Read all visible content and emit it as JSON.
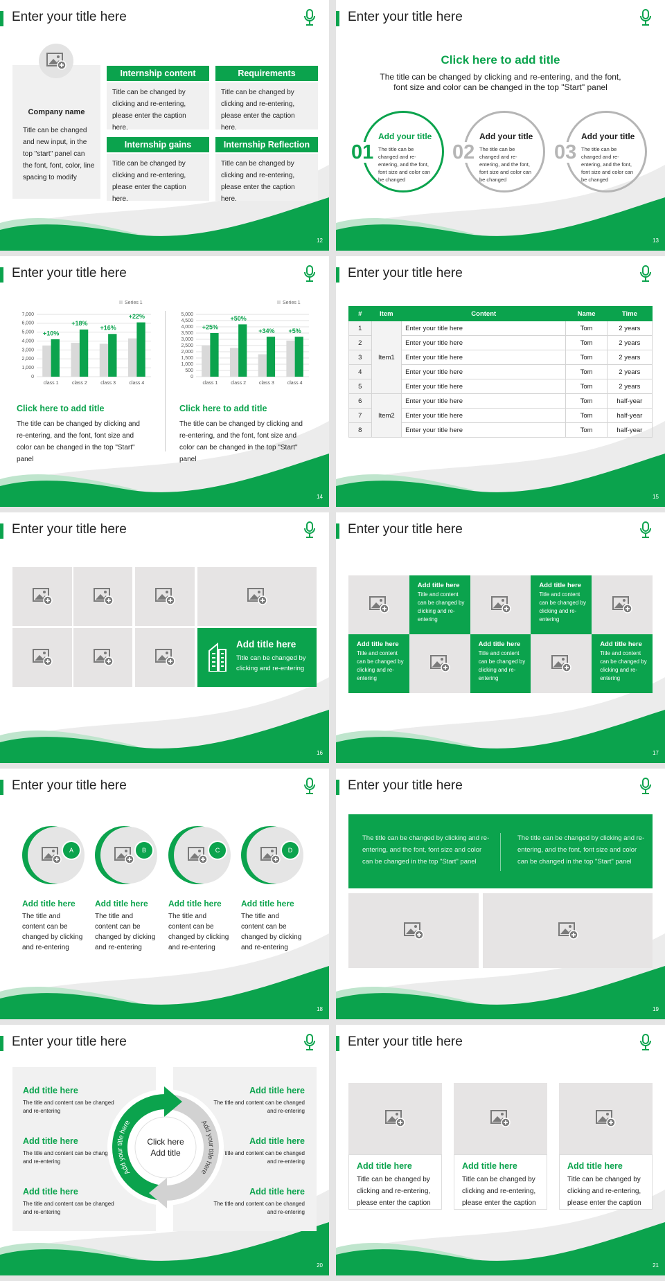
{
  "slides": [
    {
      "title": "Enter your title here",
      "page": 12,
      "company": {
        "name": "Company name",
        "text": "Title can be changed and new input, in the top \"start\" panel can the font, font, color, line spacing to modify"
      },
      "boxes": [
        {
          "heading": "Internship content",
          "text": "Title can be changed by clicking and re-entering, please enter the caption here."
        },
        {
          "heading": "Requirements",
          "text": "Title can be changed by clicking and re-entering, please enter the caption here."
        },
        {
          "heading": "Internship gains",
          "text": "Title can be changed by clicking and re-entering, please enter the caption here."
        },
        {
          "heading": "Internship Reflection",
          "text": "Title can be changed by clicking and re-entering, please enter the caption here."
        }
      ]
    },
    {
      "title": "Enter your title here",
      "page": 13,
      "heading": "Click here to add title",
      "text": "The title can be changed by clicking and re-entering, and the font, font size and color can be changed in the top \"Start\" panel",
      "items": [
        {
          "number": "01",
          "title": "Add your title",
          "text": "The title can be changed and re-entering, and the font, font size and color can be changed"
        },
        {
          "number": "02",
          "title": "Add your title",
          "text": "The title can be changed and re-entering, and the font, font size and color can be changed"
        },
        {
          "number": "03",
          "title": "Add your title",
          "text": "The title can be changed and re-entering, and the font, font size and color can be changed"
        }
      ]
    },
    {
      "title": "Enter your title here",
      "page": 14,
      "captions": [
        {
          "heading": "Click here to add title",
          "text": "The title can be changed by clicking and re-entering, and the font, font size and color can be changed in the top \"Start\" panel"
        },
        {
          "heading": "Click here to add title",
          "text": "The title can be changed by clicking and re-entering, and the font, font size and color can be changed in the top \"Start\" panel"
        }
      ]
    },
    {
      "title": "Enter your title here",
      "page": 15,
      "table": {
        "header": [
          "#",
          "Item",
          "Content",
          "Name",
          "Time"
        ],
        "groups": [
          {
            "item": "Item1",
            "rows": [
              [
                1,
                "Enter your title here",
                "Tom",
                "2 years"
              ],
              [
                2,
                "Enter your title here",
                "Tom",
                "2 years"
              ],
              [
                3,
                "Enter your title here",
                "Tom",
                "2 years"
              ],
              [
                4,
                "Enter your title here",
                "Tom",
                "2 years"
              ],
              [
                5,
                "Enter your title here",
                "Tom",
                "2 years"
              ]
            ]
          },
          {
            "item": "Item2",
            "rows": [
              [
                6,
                "Enter your title here",
                "Tom",
                "half-year"
              ],
              [
                7,
                "Enter your title here",
                "Tom",
                "half-year"
              ],
              [
                8,
                "Enter your title here",
                "Tom",
                "half-year"
              ]
            ]
          }
        ]
      }
    },
    {
      "title": "Enter your title here",
      "page": 16,
      "feature": {
        "title": "Add title here",
        "text": "Title can be changed by clicking and re-entering"
      }
    },
    {
      "title": "Enter your title here",
      "page": 17,
      "cards": [
        {
          "title": "Add title here",
          "text": "Title and content can be changed by clicking and re-entering"
        },
        {
          "title": "Add title here",
          "text": "Title and content can be changed by clicking and re-entering"
        },
        {
          "title": "Add title here",
          "text": "Title and content can be changed by clicking and re-entering"
        },
        {
          "title": "Add title here",
          "text": "Title and content can be changed by clicking and re-entering"
        },
        {
          "title": "Add title here",
          "text": "Title and content can be changed by clicking and re-entering"
        }
      ]
    },
    {
      "title": "Enter your title here",
      "page": 18,
      "items": [
        {
          "letter": "A",
          "title": "Add title here",
          "text": "The title and content can be changed by clicking and re-entering"
        },
        {
          "letter": "B",
          "title": "Add title here",
          "text": "The title and content can be changed by clicking and re-entering"
        },
        {
          "letter": "C",
          "title": "Add title here",
          "text": "The title and content can be changed by clicking and re-entering"
        },
        {
          "letter": "D",
          "title": "Add title here",
          "text": "The title and content can be changed by clicking and re-entering"
        }
      ]
    },
    {
      "title": "Enter your title here",
      "page": 19,
      "texts": [
        "The title can be changed by clicking and re-entering, and the font, font size and color can be changed in the top \"Start\" panel",
        "The title can be changed by clicking and re-entering, and the font, font size and color can be changed in the top \"Start\" panel"
      ]
    },
    {
      "title": "Enter your title here",
      "page": 20,
      "center": [
        "Click here",
        "Add title"
      ],
      "arc_labels": [
        "Add your title here",
        "Add your title here"
      ],
      "items": [
        {
          "title": "Add title here",
          "text": "The title and content can be changed and re-entering"
        },
        {
          "title": "Add title here",
          "text": "The title and content can be changed and re-entering"
        },
        {
          "title": "Add title here",
          "text": "The title and content can be changed and re-entering"
        },
        {
          "title": "Add title here",
          "text": "The title and content can be changed and re-entering"
        },
        {
          "title": "Add title here",
          "text": "The title and content can be changed and re-entering"
        },
        {
          "title": "Add title here",
          "text": "The title and content can be changed and re-entering"
        }
      ]
    },
    {
      "title": "Enter your title here",
      "page": 21,
      "cards": [
        {
          "title": "Add title here",
          "text": "Title can be changed by clicking and re-entering, please enter the caption"
        },
        {
          "title": "Add title here",
          "text": "Title can be changed by clicking and re-entering, please enter the caption"
        },
        {
          "title": "Add title here",
          "text": "Title can be changed by clicking and re-entering, please enter the caption"
        }
      ]
    }
  ],
  "chart_data": [
    {
      "type": "bar",
      "categories": [
        "class 1",
        "class 2",
        "class 3",
        "class 4"
      ],
      "series": [
        {
          "name": "Series 1",
          "color": "#d9d9d9",
          "values": [
            3500,
            3800,
            3700,
            4300
          ]
        },
        {
          "color": "#0ba34d",
          "values": [
            4200,
            5300,
            4800,
            6100
          ]
        }
      ],
      "annotations": [
        "+10%",
        "+18%",
        "+16%",
        "+22%"
      ],
      "ylim": [
        0,
        7000
      ],
      "yticks": [
        0,
        {
          "value": 1000,
          "label": "1,000"
        },
        {
          "value": 2000,
          "label": "2,000"
        },
        {
          "value": 3000,
          "label": "3,000"
        },
        {
          "value": 4000,
          "label": "4,000"
        },
        {
          "value": 5000,
          "label": "5,000"
        },
        {
          "value": 6000,
          "label": "6,000"
        },
        {
          "value": 7000,
          "label": "7,000"
        }
      ],
      "grid": true
    },
    {
      "type": "bar",
      "categories": [
        "class 1",
        "class 2",
        "class 3",
        "class 4"
      ],
      "series": [
        {
          "name": "Series 1",
          "color": "#d9d9d9",
          "values": [
            2500,
            2300,
            1800,
            2900
          ]
        },
        {
          "color": "#0ba34d",
          "values": [
            3500,
            4200,
            3200,
            3200
          ]
        }
      ],
      "annotations": [
        "+25%",
        "+50%",
        "+34%",
        "+5%"
      ],
      "ylim": [
        0,
        5000
      ],
      "yticks": [
        0,
        500,
        {
          "value": 1000,
          "label": "1,000"
        },
        {
          "value": 1500,
          "label": "1,500"
        },
        {
          "value": 2000,
          "label": "2,000"
        },
        {
          "value": 2500,
          "label": "2,500"
        },
        {
          "value": 3000,
          "label": "3,000"
        },
        {
          "value": 3500,
          "label": "3,500"
        },
        {
          "value": 4000,
          "label": "4,000"
        },
        {
          "value": 4500,
          "label": "4,500"
        },
        {
          "value": 5000,
          "label": "5,000"
        }
      ],
      "grid": true
    }
  ]
}
